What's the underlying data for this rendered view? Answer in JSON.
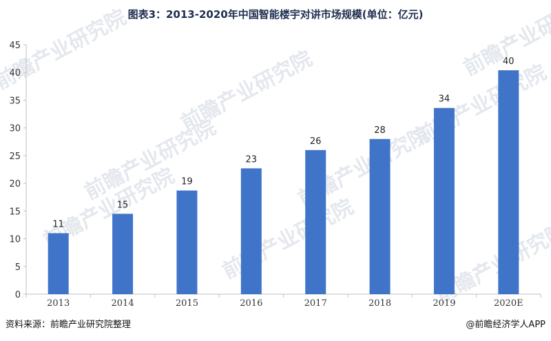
{
  "chart_data": {
    "type": "bar",
    "title": "图表3：2013-2020年中国智能楼宇对讲市场规模(单位：亿元)",
    "categories": [
      "2013",
      "2014",
      "2015",
      "2016",
      "2017",
      "2018",
      "2019",
      "2020E"
    ],
    "values": [
      11,
      14.5,
      18.7,
      22.7,
      26,
      28,
      33.6,
      40.4
    ],
    "data_labels": [
      "11",
      "15",
      "19",
      "23",
      "26",
      "28",
      "34",
      "40"
    ],
    "y_ticks": [
      "0",
      "5",
      "10",
      "15",
      "20",
      "25",
      "30",
      "35",
      "40",
      "45"
    ],
    "ylim": [
      0,
      45
    ],
    "grid": false,
    "legend": "none",
    "bar_color": "#3f74c9"
  },
  "footer": {
    "source": "资料来源：前瞻产业研究院整理",
    "brand": "@前瞻经济学人APP"
  },
  "watermark": {
    "text": "前瞻产业研究院"
  }
}
